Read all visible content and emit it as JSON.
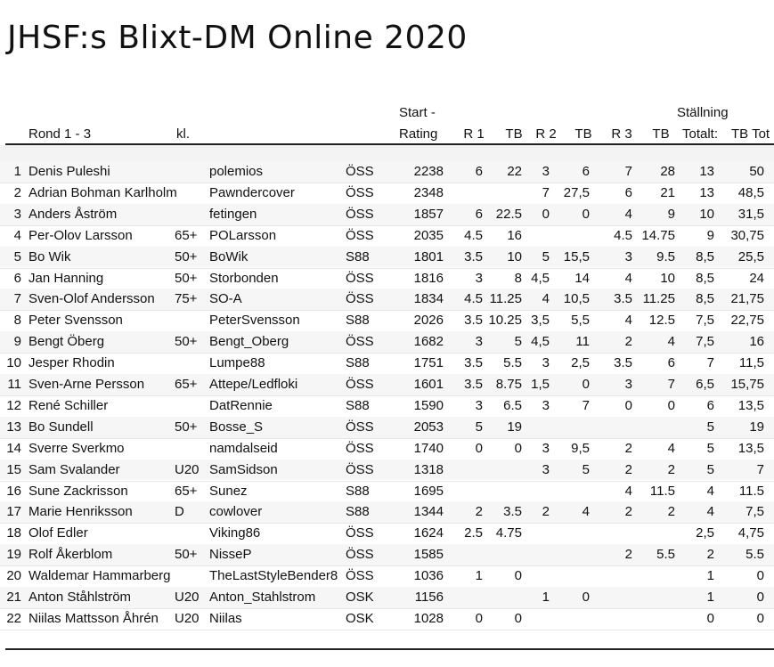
{
  "title": "JHSF:s Blixt-DM Online 2020",
  "header": {
    "start_line1": "Start -",
    "stallning_line1": "Ställning",
    "round_label": "Rond 1 - 3",
    "class": "kl.",
    "rating": "Rating",
    "r1": "R 1",
    "tb1": "TB",
    "r2": "R 2",
    "tb2": "TB",
    "r3": "R 3",
    "tb3": "TB",
    "total": "Totalt:",
    "tbtot": "TB Tot"
  },
  "rows": [
    {
      "no": "1",
      "name": "Denis Puleshi",
      "kl": "",
      "user": "polemios",
      "club": "ÖSS",
      "rating": "2238",
      "r1": "6",
      "tb1": "22",
      "r2": "3",
      "tb2": "6",
      "r3": "7",
      "tb3": "28",
      "tot": "13",
      "tbtot": "50"
    },
    {
      "no": "2",
      "name": "Adrian Bohman Karlholm",
      "kl": "",
      "user": "Pawndercover",
      "club": "ÖSS",
      "rating": "2348",
      "r1": "",
      "tb1": "",
      "r2": "7",
      "tb2": "27,5",
      "r3": "6",
      "tb3": "21",
      "tot": "13",
      "tbtot": "48,5"
    },
    {
      "no": "3",
      "name": "Anders Åström",
      "kl": "",
      "user": "fetingen",
      "club": "ÖSS",
      "rating": "1857",
      "r1": "6",
      "tb1": "22.5",
      "r2": "0",
      "tb2": "0",
      "r3": "4",
      "tb3": "9",
      "tot": "10",
      "tbtot": "31,5"
    },
    {
      "no": "4",
      "name": "Per-Olov Larsson",
      "kl": "65+",
      "user": "POLarsson",
      "club": "ÖSS",
      "rating": "2035",
      "r1": "4.5",
      "tb1": "16",
      "r2": "",
      "tb2": "",
      "r3": "4.5",
      "tb3": "14.75",
      "tot": "9",
      "tbtot": "30,75"
    },
    {
      "no": "5",
      "name": "Bo Wik",
      "kl": "50+",
      "user": "BoWik",
      "club": "S88",
      "rating": "1801",
      "r1": "3.5",
      "tb1": "10",
      "r2": "5",
      "tb2": "15,5",
      "r3": "3",
      "tb3": "9.5",
      "tot": "8,5",
      "tbtot": "25,5"
    },
    {
      "no": "6",
      "name": "Jan Hanning",
      "kl": "50+",
      "user": "Storbonden",
      "club": "ÖSS",
      "rating": "1816",
      "r1": "3",
      "tb1": "8",
      "r2": "4,5",
      "tb2": "14",
      "r3": "4",
      "tb3": "10",
      "tot": "8,5",
      "tbtot": "24"
    },
    {
      "no": "7",
      "name": "Sven-Olof Andersson",
      "kl": "75+",
      "user": "SO-A",
      "club": "ÖSS",
      "rating": "1834",
      "r1": "4.5",
      "tb1": "11.25",
      "r2": "4",
      "tb2": "10,5",
      "r3": "3.5",
      "tb3": "11.25",
      "tot": "8,5",
      "tbtot": "21,75"
    },
    {
      "no": "8",
      "name": "Peter Svensson",
      "kl": "",
      "user": "PeterSvensson",
      "club": "S88",
      "rating": "2026",
      "r1": "3.5",
      "tb1": "10.25",
      "r2": "3,5",
      "tb2": "5,5",
      "r3": "4",
      "tb3": "12.5",
      "tot": "7,5",
      "tbtot": "22,75"
    },
    {
      "no": "9",
      "name": "Bengt Öberg",
      "kl": "50+",
      "user": "Bengt_Oberg",
      "club": "ÖSS",
      "rating": "1682",
      "r1": "3",
      "tb1": "5",
      "r2": "4,5",
      "tb2": "11",
      "r3": "2",
      "tb3": "4",
      "tot": "7,5",
      "tbtot": "16"
    },
    {
      "no": "10",
      "name": "Jesper Rhodin",
      "kl": "",
      "user": "Lumpe88",
      "club": "S88",
      "rating": "1751",
      "r1": "3.5",
      "tb1": "5.5",
      "r2": "3",
      "tb2": "2,5",
      "r3": "3.5",
      "tb3": "6",
      "tot": "7",
      "tbtot": "11,5"
    },
    {
      "no": "11",
      "name": "Sven-Arne Persson",
      "kl": "65+",
      "user": "Attepe/Ledfloki",
      "club": "ÖSS",
      "rating": "1601",
      "r1": "3.5",
      "tb1": "8.75",
      "r2": "1,5",
      "tb2": "0",
      "r3": "3",
      "tb3": "7",
      "tot": "6,5",
      "tbtot": "15,75"
    },
    {
      "no": "12",
      "name": "René Schiller",
      "kl": "",
      "user": "DatRennie",
      "club": "S88",
      "rating": "1590",
      "r1": "3",
      "tb1": "6.5",
      "r2": "3",
      "tb2": "7",
      "r3": "0",
      "tb3": "0",
      "tot": "6",
      "tbtot": "13,5"
    },
    {
      "no": "13",
      "name": "Bo Sundell",
      "kl": "50+",
      "user": "Bosse_S",
      "club": "ÖSS",
      "rating": "2053",
      "r1": "5",
      "tb1": "19",
      "r2": "",
      "tb2": "",
      "r3": "",
      "tb3": "",
      "tot": "5",
      "tbtot": "19"
    },
    {
      "no": "14",
      "name": "Sverre Sverkmo",
      "kl": "",
      "user": "namdalseid",
      "club": "ÖSS",
      "rating": "1740",
      "r1": "0",
      "tb1": "0",
      "r2": "3",
      "tb2": "9,5",
      "r3": "2",
      "tb3": "4",
      "tot": "5",
      "tbtot": "13,5"
    },
    {
      "no": "15",
      "name": "Sam Svalander",
      "kl": "U20",
      "user": "SamSidson",
      "club": "ÖSS",
      "rating": "1318",
      "r1": "",
      "tb1": "",
      "r2": "3",
      "tb2": "5",
      "r3": "2",
      "tb3": "2",
      "tot": "5",
      "tbtot": "7"
    },
    {
      "no": "16",
      "name": "Sune Zackrisson",
      "kl": "65+",
      "user": "Sunez",
      "club": "S88",
      "rating": "1695",
      "r1": "",
      "tb1": "",
      "r2": "",
      "tb2": "",
      "r3": "4",
      "tb3": "11.5",
      "tot": "4",
      "tbtot": "11.5"
    },
    {
      "no": "17",
      "name": "Marie Henriksson",
      "kl": "D",
      "user": "cowlover",
      "club": "S88",
      "rating": "1344",
      "r1": "2",
      "tb1": "3.5",
      "r2": "2",
      "tb2": "4",
      "r3": "2",
      "tb3": "2",
      "tot": "4",
      "tbtot": "7,5"
    },
    {
      "no": "18",
      "name": "Olof Edler",
      "kl": "",
      "user": "Viking86",
      "club": "ÖSS",
      "rating": "1624",
      "r1": "2.5",
      "tb1": "4.75",
      "r2": "",
      "tb2": "",
      "r3": "",
      "tb3": "",
      "tot": "2,5",
      "tbtot": "4,75"
    },
    {
      "no": "19",
      "name": "Rolf Åkerblom",
      "kl": "50+",
      "user": "NisseP",
      "club": "ÖSS",
      "rating": "1585",
      "r1": "",
      "tb1": "",
      "r2": "",
      "tb2": "",
      "r3": "2",
      "tb3": "5.5",
      "tot": "2",
      "tbtot": "5.5"
    },
    {
      "no": "20",
      "name": "Waldemar Hammarberg",
      "kl": "",
      "user": "TheLastStyleBender8",
      "club": "ÖSS",
      "rating": "1036",
      "r1": "1",
      "tb1": "0",
      "r2": "",
      "tb2": "",
      "r3": "",
      "tb3": "",
      "tot": "1",
      "tbtot": "0"
    },
    {
      "no": "21",
      "name": "Anton Ståhlström",
      "kl": "U20",
      "user": "Anton_Stahlstrom",
      "club": "OSK",
      "rating": "1156",
      "r1": "",
      "tb1": "",
      "r2": "1",
      "tb2": "0",
      "r3": "",
      "tb3": "",
      "tot": "1",
      "tbtot": "0"
    },
    {
      "no": "22",
      "name": "Niilas Mattsson Åhrén",
      "kl": "U20",
      "user": "Niilas",
      "club": "OSK",
      "rating": "1028",
      "r1": "0",
      "tb1": "0",
      "r2": "",
      "tb2": "",
      "r3": "",
      "tb3": "",
      "tot": "0",
      "tbtot": "0"
    }
  ]
}
